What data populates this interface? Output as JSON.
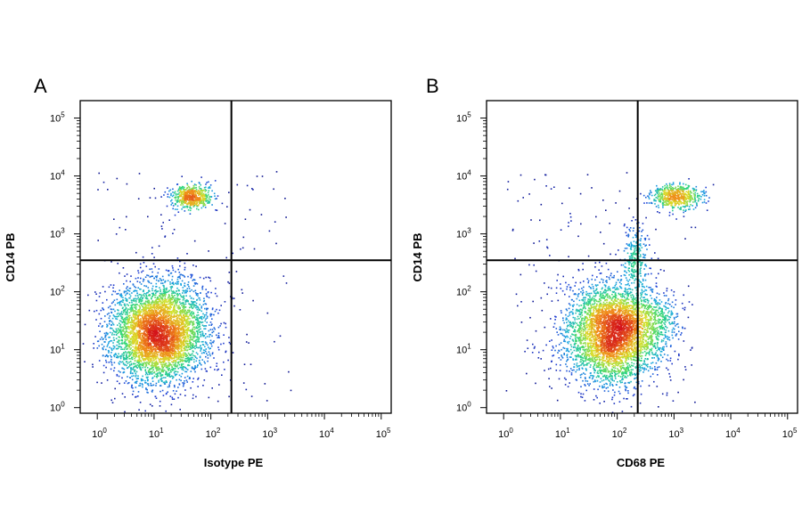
{
  "chart_data": [
    {
      "type": "scatter",
      "panel_label": "A",
      "xlabel": "Isotype PE",
      "ylabel": "CD14 PB",
      "x_scale": "log",
      "y_scale": "log",
      "xlim": [
        0.5,
        150000
      ],
      "ylim": [
        0.8,
        200000
      ],
      "x_ticks": [
        "10^0",
        "10^1",
        "10^2",
        "10^3",
        "10^4",
        "10^5"
      ],
      "y_ticks": [
        "10^0",
        "10^1",
        "10^2",
        "10^3",
        "10^4",
        "10^5"
      ],
      "quadrant_gate": {
        "x": 230,
        "y": 350
      },
      "populations": [
        {
          "name": "CD14-low",
          "center": [
            12,
            20
          ],
          "spread_decades": [
            0.42,
            0.42
          ],
          "relative_size": 1.0
        },
        {
          "name": "CD14-high",
          "center": [
            45,
            4500
          ],
          "spread_decades": [
            0.18,
            0.1
          ],
          "relative_size": 0.12
        }
      ],
      "colormap": [
        "#08087a",
        "#1f3fd6",
        "#1aa8e0",
        "#2fd67a",
        "#d8e02a",
        "#f08a1a",
        "#d4141a"
      ]
    },
    {
      "type": "scatter",
      "panel_label": "B",
      "xlabel": "CD68 PE",
      "ylabel": "CD14 PB",
      "x_scale": "log",
      "y_scale": "log",
      "xlim": [
        0.5,
        150000
      ],
      "ylim": [
        0.8,
        200000
      ],
      "x_ticks": [
        "10^0",
        "10^1",
        "10^2",
        "10^3",
        "10^4",
        "10^5"
      ],
      "y_ticks": [
        "10^0",
        "10^1",
        "10^2",
        "10^3",
        "10^4",
        "10^5"
      ],
      "quadrant_gate": {
        "x": 230,
        "y": 350
      },
      "populations": [
        {
          "name": "CD14-low CD68-low",
          "center": [
            80,
            20
          ],
          "spread_decades": [
            0.4,
            0.42
          ],
          "relative_size": 1.0
        },
        {
          "name": "CD14-high CD68-high",
          "center": [
            1100,
            4500
          ],
          "spread_decades": [
            0.22,
            0.1
          ],
          "relative_size": 0.14
        },
        {
          "name": "CD14-mid transition",
          "center": [
            200,
            400
          ],
          "spread_decades": [
            0.1,
            0.3
          ],
          "relative_size": 0.06
        },
        {
          "name": "CD14-low CD68-mid",
          "center": [
            450,
            30
          ],
          "spread_decades": [
            0.25,
            0.25
          ],
          "relative_size": 0.08
        }
      ],
      "colormap": [
        "#08087a",
        "#1f3fd6",
        "#1aa8e0",
        "#2fd67a",
        "#d8e02a",
        "#f08a1a",
        "#d4141a"
      ]
    }
  ]
}
